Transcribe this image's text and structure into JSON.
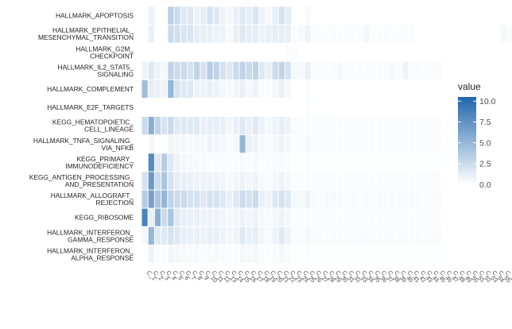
{
  "chart_data": {
    "type": "heatmap",
    "rows": [
      [
        "HALLMARK_APOPTOSIS"
      ],
      [
        "HALLMARK_EPITHELIAL_",
        "MESENCHYMAL_TRANSITION"
      ],
      [
        "HALLMARK_G2M_",
        "CHECKPOINT"
      ],
      [
        "HALLMARK_IL2_STAT5_",
        "SIGNALING"
      ],
      [
        "HALLMARK_COMPLEMENT"
      ],
      [
        "HALLMARK_E2F_TARGETS"
      ],
      [
        "KEGG_HEMATOPOIETIC_",
        "CELL_LINEAGE"
      ],
      [
        "HALLMARK_TNFA_SIGNALING_",
        "VIA_NFKB"
      ],
      [
        "KEGG_PRIMARY_",
        "IMMUNODEFICIENCY"
      ],
      [
        "KEGG_ANTIGEN_PROCESSING_",
        "AND_PRESENTATION"
      ],
      [
        "HALLMARK_ALLOGRAFT_",
        "REJECTION"
      ],
      [
        "KEGG_RIBOSOME"
      ],
      [
        "HALLMARK_INTERFERON_",
        "GAMMA_RESPONSE"
      ],
      [
        "HALLMARK_INTERFERON_",
        "ALPHA_RESPONSE"
      ]
    ],
    "columns": [
      "C_1",
      "C_2",
      "C_3",
      "C_4",
      "C_5",
      "C_6",
      "C_7",
      "C_8",
      "C_9",
      "C_10",
      "C_11",
      "C_12",
      "C_13",
      "C_14",
      "C_15",
      "C_16",
      "C_17",
      "C_18",
      "C_19",
      "C_20",
      "C_21",
      "C_22",
      "C_23",
      "C_24",
      "C_25",
      "C_26",
      "C_27",
      "C_28",
      "C_29",
      "C_30",
      "C_31",
      "C_32",
      "C_33",
      "C_34",
      "C_35",
      "C_36",
      "C_37",
      "C_38",
      "C_39",
      "C_40",
      "C_41",
      "C_42",
      "C_43",
      "C_44",
      "C_45",
      "C_46",
      "C_47",
      "C_48",
      "C_49",
      "C_50",
      "C_51",
      "C_52",
      "C_53",
      "C_54",
      "C_55",
      "C_56",
      "C_57",
      "C_58",
      "C_59"
    ],
    "values": [
      [
        0,
        0.8,
        0,
        0,
        3.2,
        2.5,
        1.5,
        1.5,
        0.8,
        1.2,
        2.0,
        1.5,
        0.8,
        0.5,
        1.0,
        1.5,
        1.2,
        1.8,
        0.8,
        0.4,
        1.2,
        2.0,
        1.2,
        0,
        0,
        0.4,
        0,
        0,
        0,
        0,
        0,
        0,
        0,
        0,
        0,
        0,
        0,
        0,
        0,
        0,
        0,
        0,
        0,
        0,
        0,
        0,
        0,
        0,
        0,
        0,
        0,
        0,
        0,
        0,
        0,
        0,
        0,
        0,
        0
      ],
      [
        0,
        1.0,
        0,
        0,
        2.5,
        2.2,
        1.8,
        1.8,
        1.2,
        1.2,
        1.0,
        0.8,
        0.8,
        0.4,
        1.0,
        1.5,
        1.2,
        1.2,
        0.8,
        1.0,
        1.2,
        1.2,
        1.0,
        0.3,
        0.4,
        0.8,
        0.3,
        0.2,
        0.2,
        0.3,
        0.2,
        0.2,
        0.3,
        0.2,
        0.5,
        0.2,
        0.2,
        0.3,
        0.2,
        0.2,
        0.2,
        0.3,
        0,
        0,
        0,
        0,
        0,
        0,
        0,
        0,
        0,
        0,
        0,
        0,
        0,
        0.5,
        0.3,
        0,
        0
      ],
      [
        0,
        0,
        0,
        0,
        0,
        0,
        0,
        0,
        0,
        0,
        0,
        0,
        0,
        0,
        0,
        0,
        0,
        0,
        0,
        0,
        0,
        0,
        0.2,
        0.2,
        0,
        0,
        0,
        0,
        0,
        0,
        0,
        0,
        0,
        0,
        0,
        0,
        0,
        0,
        0,
        0,
        0,
        0,
        0,
        0,
        0,
        0,
        0,
        0,
        0,
        0,
        0,
        0,
        0,
        0,
        0,
        0,
        0,
        0,
        0
      ],
      [
        0.8,
        1.5,
        0.8,
        0.5,
        3.0,
        2.5,
        2.5,
        2.0,
        3.0,
        2.0,
        3.5,
        3.0,
        2.0,
        1.5,
        2.5,
        3.0,
        2.5,
        3.0,
        1.5,
        1.0,
        2.5,
        3.0,
        2.0,
        0.5,
        0.5,
        1.0,
        0.3,
        0.2,
        0.3,
        0.3,
        0.5,
        0.2,
        0.3,
        0.2,
        0.3,
        0.2,
        0.3,
        0.3,
        0.5,
        0.3,
        0.8,
        0.3,
        0.3,
        0.2,
        0.3,
        0.3,
        0,
        0,
        0,
        0,
        0,
        0,
        0,
        0,
        0,
        0,
        0,
        0,
        0
      ],
      [
        4.5,
        1.2,
        1.0,
        0.8,
        5.0,
        2.0,
        1.5,
        1.5,
        0.8,
        0.8,
        1.0,
        0.8,
        0.5,
        0.4,
        0.6,
        1.0,
        0.5,
        0.8,
        0.3,
        0.2,
        0.5,
        1.0,
        0.5,
        0,
        0,
        0.3,
        0,
        0,
        0,
        0,
        0,
        0,
        0,
        0,
        0,
        0,
        0,
        0,
        0,
        0,
        0,
        0,
        0,
        0,
        0,
        0,
        0,
        0,
        0,
        0,
        0,
        0,
        0,
        0,
        0,
        0,
        0,
        0,
        0
      ],
      [
        0,
        0,
        0,
        0,
        0,
        0,
        0,
        0,
        0,
        0,
        0,
        0,
        0,
        0,
        0,
        0,
        0,
        0,
        0,
        0,
        0,
        0,
        0,
        0,
        0,
        0.2,
        0,
        0,
        0,
        0,
        0,
        0,
        0,
        0,
        0,
        0,
        0,
        0,
        0,
        0,
        0,
        0,
        0,
        0,
        0,
        0,
        0,
        0,
        0,
        0,
        0,
        0,
        0,
        0,
        0,
        0,
        0,
        0,
        0
      ],
      [
        2.5,
        5.5,
        3.0,
        2.0,
        2.5,
        1.5,
        1.5,
        1.5,
        1.5,
        1.0,
        1.2,
        1.2,
        1.0,
        0.6,
        1.0,
        1.5,
        1.0,
        1.5,
        0.8,
        0.5,
        0.8,
        1.2,
        0.8,
        0.3,
        0.3,
        0.3,
        0.2,
        0.2,
        0.2,
        0.2,
        0.2,
        0.2,
        0.2,
        0.2,
        0.2,
        0.2,
        0.2,
        0.2,
        0.2,
        0.2,
        0.2,
        0.2,
        0.2,
        0.2,
        0.2,
        0.2,
        0,
        0,
        0,
        0,
        0,
        0,
        0,
        0,
        0,
        0,
        0,
        0,
        0
      ],
      [
        0,
        0.5,
        0,
        0,
        0.6,
        0.5,
        0.5,
        0.4,
        0.5,
        0.5,
        0.8,
        0.6,
        0.5,
        0.3,
        0.5,
        5.0,
        1.0,
        0.8,
        0.5,
        0.3,
        0.5,
        0.8,
        0.5,
        0.2,
        0.2,
        0.5,
        0.2,
        0.2,
        0.2,
        0.2,
        0.2,
        0.2,
        0.2,
        0.2,
        0.2,
        0.2,
        0.2,
        0.2,
        0.2,
        0.2,
        0.2,
        0.2,
        0.2,
        0.2,
        0.2,
        0.2,
        0,
        0,
        0,
        0,
        0,
        0,
        0,
        0,
        0,
        0,
        0,
        0,
        0
      ],
      [
        0,
        8.0,
        1.5,
        3.5,
        1.5,
        0.8,
        0.5,
        0.5,
        0.4,
        0.4,
        0.3,
        0.3,
        0.3,
        0.2,
        0.3,
        0.4,
        0.3,
        0.4,
        0.2,
        0.2,
        0.3,
        0.4,
        0.3,
        0.1,
        0.1,
        0.2,
        0.1,
        0.1,
        0.1,
        0.1,
        0.1,
        0.1,
        0.1,
        0.1,
        0.1,
        0.1,
        0.1,
        0.1,
        0.1,
        0.1,
        0.1,
        0.1,
        0.1,
        0.1,
        0.1,
        0.1,
        0,
        0,
        0,
        0,
        0,
        0,
        0,
        0,
        0,
        0,
        0,
        0,
        0
      ],
      [
        2.0,
        7.0,
        2.5,
        4.0,
        2.0,
        1.2,
        1.0,
        1.0,
        0.8,
        0.8,
        0.8,
        0.8,
        0.6,
        0.4,
        0.6,
        0.8,
        0.6,
        0.8,
        0.4,
        0.3,
        0.5,
        0.8,
        0.5,
        0.2,
        0.2,
        0.3,
        0.2,
        0.2,
        0.2,
        0.2,
        0.2,
        0.2,
        0.2,
        0.2,
        0.2,
        0.2,
        0.2,
        0.2,
        0.2,
        0.2,
        0.2,
        0.2,
        0.2,
        0.2,
        0.2,
        0.2,
        0,
        0,
        0,
        0,
        0,
        0,
        0,
        0,
        0,
        0,
        0,
        0,
        0
      ],
      [
        3.5,
        6.5,
        4.0,
        5.0,
        3.0,
        2.5,
        2.5,
        2.0,
        2.0,
        1.5,
        2.0,
        2.0,
        1.5,
        1.0,
        1.5,
        2.5,
        2.0,
        2.5,
        1.0,
        0.8,
        1.5,
        2.0,
        1.5,
        0.5,
        0.5,
        0.8,
        0.4,
        0.3,
        0.4,
        0.4,
        0.4,
        0.3,
        0.4,
        0.3,
        0.4,
        0.3,
        0.4,
        0.4,
        0.4,
        0.4,
        0.4,
        0.4,
        0.3,
        0.3,
        0.3,
        0.3,
        0,
        0,
        0,
        0,
        0,
        0,
        0,
        0,
        0,
        0,
        0,
        0,
        0
      ],
      [
        8.5,
        1.0,
        5.5,
        2.5,
        4.0,
        1.5,
        1.0,
        1.0,
        1.0,
        0.8,
        0.8,
        0.8,
        0.6,
        0.5,
        0.6,
        0.8,
        0.6,
        0.8,
        0.5,
        0.4,
        0.5,
        0.8,
        0.5,
        0.2,
        0.2,
        0.3,
        0.2,
        0.2,
        0.2,
        0.2,
        0.2,
        0.2,
        0.2,
        0.2,
        0.2,
        0.2,
        0.2,
        0.2,
        0.2,
        0.2,
        0.2,
        0.2,
        0.2,
        0.2,
        0.2,
        0.2,
        0,
        0,
        0,
        0,
        0,
        0,
        0,
        0,
        0,
        0,
        0,
        0,
        0
      ],
      [
        0.5,
        5.0,
        1.5,
        1.5,
        2.0,
        1.5,
        1.0,
        1.0,
        1.0,
        0.8,
        1.0,
        1.0,
        0.8,
        0.5,
        0.8,
        1.5,
        1.0,
        1.2,
        0.6,
        0.4,
        0.8,
        1.5,
        0.8,
        0.3,
        0.3,
        0.5,
        0.3,
        0.3,
        0.3,
        0.3,
        0.3,
        0.3,
        0.3,
        0.3,
        0.3,
        0.3,
        0.3,
        0.3,
        0.3,
        0.3,
        0.3,
        0.3,
        0.3,
        0.3,
        0.3,
        0.3,
        0,
        0,
        0,
        0,
        0,
        0,
        0,
        0,
        0,
        0,
        0,
        0,
        0
      ],
      [
        0,
        0.8,
        0.3,
        0.3,
        0.6,
        0.5,
        0.4,
        0.4,
        0.4,
        0.3,
        0.4,
        0.4,
        0.3,
        0.2,
        0.3,
        0.5,
        0.4,
        0.5,
        0.2,
        0.2,
        0.3,
        0.5,
        0.3,
        0.1,
        0.1,
        0.2,
        0.1,
        0.1,
        0.1,
        0.1,
        0.1,
        0.1,
        0.1,
        0.1,
        0.1,
        0.1,
        0.1,
        0.1,
        0.1,
        0.1,
        0.1,
        0.1,
        0.1,
        0.1,
        0.1,
        0.1,
        0,
        0,
        0,
        0,
        0,
        0,
        0,
        0,
        0,
        0,
        0,
        0,
        0
      ]
    ],
    "legend": {
      "title": "value",
      "ticks": [
        10.0,
        7.5,
        5.0,
        2.5,
        0.0
      ],
      "tick_labels": [
        "10.0",
        "7.5",
        "5.0",
        "2.5",
        "0.0"
      ],
      "range": [
        0,
        10.5
      ],
      "low_color": "#ffffff",
      "high_color": "#2166ac",
      "placement": "right"
    }
  }
}
